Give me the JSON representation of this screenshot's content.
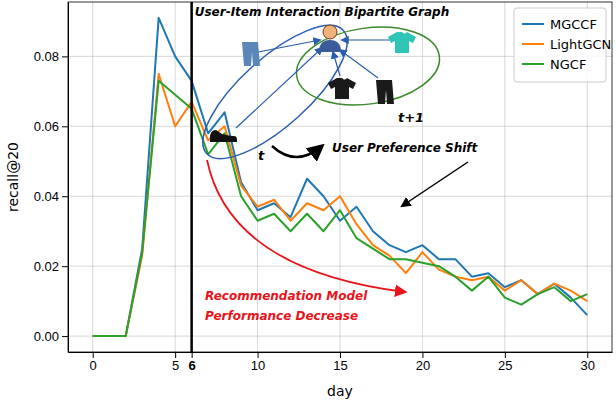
{
  "chart_data": {
    "type": "line",
    "x": [
      0,
      1,
      2,
      3,
      4,
      5,
      6,
      7,
      8,
      9,
      10,
      11,
      12,
      13,
      14,
      15,
      16,
      17,
      18,
      19,
      20,
      21,
      22,
      23,
      24,
      25,
      26,
      27,
      28,
      29,
      30
    ],
    "series": [
      {
        "name": "MGCCF",
        "color": "#1f77b4",
        "values": [
          0,
          0,
          0,
          0.025,
          0.091,
          0.08,
          0.073,
          0.058,
          0.064,
          0.044,
          0.036,
          0.038,
          0.034,
          0.045,
          0.04,
          0.033,
          0.037,
          0.03,
          0.026,
          0.024,
          0.026,
          0.022,
          0.022,
          0.017,
          0.018,
          0.014,
          0.016,
          0.012,
          0.015,
          0.011,
          0.006
        ]
      },
      {
        "name": "LightGCN",
        "color": "#ff7f0e",
        "values": [
          0,
          0,
          0,
          0.023,
          0.075,
          0.06,
          0.067,
          0.056,
          0.06,
          0.043,
          0.037,
          0.039,
          0.033,
          0.038,
          0.036,
          0.04,
          0.032,
          0.026,
          0.023,
          0.018,
          0.024,
          0.019,
          0.017,
          0.016,
          0.017,
          0.013,
          0.016,
          0.012,
          0.015,
          0.013,
          0.01
        ]
      },
      {
        "name": "NGCF",
        "color": "#2ca02c",
        "values": [
          0,
          0,
          0,
          0.024,
          0.073,
          0.069,
          0.065,
          0.052,
          0.058,
          0.04,
          0.033,
          0.035,
          0.03,
          0.035,
          0.03,
          0.036,
          0.028,
          0.025,
          0.022,
          0.022,
          0.021,
          0.02,
          0.017,
          0.013,
          0.017,
          0.011,
          0.009,
          0.012,
          0.014,
          0.01,
          0.012
        ]
      }
    ],
    "xlim": [
      -1.5,
      31.5
    ],
    "ylim": [
      -0.00455,
      0.09555
    ],
    "xticks": [
      0,
      5,
      6,
      10,
      15,
      20,
      25,
      30
    ],
    "yticks": [
      {
        "value": 0,
        "label": "0.00"
      },
      {
        "value": 0.02,
        "label": "0.02"
      },
      {
        "value": 0.04,
        "label": "0.04"
      },
      {
        "value": 0.06,
        "label": "0.06"
      },
      {
        "value": 0.08,
        "label": "0.08"
      }
    ],
    "x_label": "day",
    "y_label": "recall@20",
    "legend": "upper right",
    "grid": true,
    "vlines": [
      6
    ],
    "annotations": {
      "graph_title": "User-Item Interaction Bipartite Graph",
      "time_t": "t",
      "time_t1": "t+1",
      "shift": "User Preference Shift",
      "decrease": [
        "Recommendation Model",
        "Performance Decrease"
      ]
    }
  }
}
